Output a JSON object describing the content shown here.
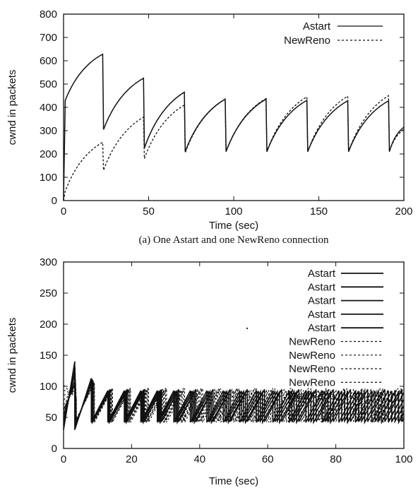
{
  "chart_data": [
    {
      "type": "line",
      "caption": "(a) One Astart and one NewReno connection",
      "xlabel": "Time (sec)",
      "ylabel": "cwnd in packets",
      "xlim": [
        0,
        200
      ],
      "ylim": [
        0,
        800
      ],
      "x_ticks": [
        "0",
        "50",
        "100",
        "150",
        "200"
      ],
      "y_ticks": [
        "0",
        "100",
        "200",
        "300",
        "400",
        "500",
        "600",
        "700",
        "800"
      ],
      "legend_position": "top-right",
      "grid": false,
      "series": [
        {
          "name": "Astart",
          "style": "solid",
          "x": [
            0,
            1,
            23,
            23.5,
            47,
            47.5,
            71,
            71.5,
            95,
            95.5,
            119,
            119.5,
            143,
            143.5,
            167,
            167.5,
            191,
            191.5,
            200
          ],
          "y": [
            0,
            430,
            628,
            305,
            525,
            225,
            465,
            210,
            435,
            210,
            435,
            210,
            430,
            210,
            428,
            210,
            428,
            210,
            315
          ]
        },
        {
          "name": "NewReno",
          "style": "dashed",
          "x": [
            0,
            1,
            23,
            23.5,
            47,
            47.5,
            71,
            71.5,
            95,
            95.5,
            119,
            119.5,
            143,
            143.5,
            167,
            167.5,
            191,
            191.5,
            200
          ],
          "y": [
            0,
            40,
            250,
            130,
            358,
            180,
            410,
            205,
            435,
            210,
            438,
            210,
            445,
            210,
            448,
            210,
            450,
            210,
            305
          ]
        }
      ]
    },
    {
      "type": "line",
      "xlabel": "Time (sec)",
      "ylabel": "cwnd in packets",
      "xlim": [
        0,
        100
      ],
      "ylim": [
        0,
        300
      ],
      "x_ticks": [
        "0",
        "20",
        "40",
        "60",
        "80",
        "100"
      ],
      "y_ticks": [
        "0",
        "50",
        "100",
        "150",
        "200",
        "250",
        "300"
      ],
      "legend_position": "top-right",
      "grid": false,
      "sawtooth": {
        "period": 4.85,
        "low": 42,
        "high": 93,
        "first_drop": 3.3,
        "initial_peaks": [
          140,
          130,
          122,
          112,
          105,
          100,
          95,
          90,
          85,
          80
        ]
      },
      "series": [
        {
          "name": "Astart",
          "style": "solid"
        },
        {
          "name": "Astart",
          "style": "solid"
        },
        {
          "name": "Astart",
          "style": "solid"
        },
        {
          "name": "Astart",
          "style": "solid"
        },
        {
          "name": "Astart",
          "style": "solid"
        },
        {
          "name": "NewReno",
          "style": "dashed"
        },
        {
          "name": "NewReno",
          "style": "dashed"
        },
        {
          "name": "NewReno",
          "style": "dashed"
        },
        {
          "name": "NewReno",
          "style": "dashed"
        },
        {
          "name": "NewReno",
          "style": "dashed"
        }
      ]
    }
  ]
}
